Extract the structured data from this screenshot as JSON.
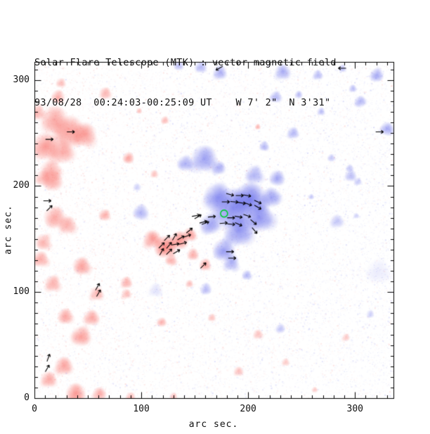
{
  "figure_name": "solar-magnetogram-plot",
  "chart_data": {
    "type": "heatmap",
    "title": "Solar Flare Telescope (MTK) : vector magnetic field",
    "subtitle": "93/08/28  00:24:03-00:25:09 UT    W 7' 2\"  N 3'31\"",
    "xlabel": "arc sec.",
    "ylabel": "arc sec.",
    "xlim": [
      0,
      336
    ],
    "ylim": [
      0,
      317
    ],
    "x_ticks": [
      0,
      100,
      200,
      300
    ],
    "y_ticks": [
      0,
      100,
      200,
      300
    ],
    "minor_tick_step": 10,
    "grid": false,
    "legend": "none",
    "colors": {
      "positive_polarity": "#f86a60",
      "negative_polarity": "#5f64eb",
      "flare_marker": "#00cc33",
      "vector_arrows": "#000000",
      "axis": "#000000",
      "background": "#ffffff"
    },
    "units": "arc seconds; blobs = [x, y, radius, amplitude]; arrows = [x, y, direction_deg_ccw_from_east]",
    "red_blobs": [
      [
        18,
        262,
        14,
        0.5
      ],
      [
        32,
        252,
        16,
        0.55
      ],
      [
        45,
        247,
        12,
        0.55
      ],
      [
        10,
        238,
        14,
        0.55
      ],
      [
        25,
        232,
        12,
        0.5
      ],
      [
        15,
        215,
        11,
        0.45
      ],
      [
        17,
        205,
        10,
        0.45
      ],
      [
        8,
        208,
        8,
        0.4
      ],
      [
        20,
        170,
        11,
        0.5
      ],
      [
        31,
        163,
        9,
        0.45
      ],
      [
        9,
        147,
        8,
        0.45
      ],
      [
        25,
        297,
        5,
        0.35
      ],
      [
        67,
        287,
        6,
        0.45
      ],
      [
        98,
        271,
        3,
        0.35
      ],
      [
        122,
        262,
        4,
        0.4
      ],
      [
        88,
        226,
        6,
        0.45
      ],
      [
        112,
        211,
        4,
        0.35
      ],
      [
        66,
        173,
        6,
        0.45
      ],
      [
        110,
        149,
        9,
        0.6
      ],
      [
        122,
        142,
        11,
        0.7
      ],
      [
        134,
        149,
        9,
        0.65
      ],
      [
        145,
        154,
        7,
        0.55
      ],
      [
        128,
        131,
        6,
        0.45
      ],
      [
        160,
        126,
        6,
        0.5
      ],
      [
        148,
        136,
        6,
        0.45
      ],
      [
        6,
        131,
        8,
        0.5
      ],
      [
        45,
        125,
        9,
        0.55
      ],
      [
        17,
        108,
        8,
        0.5
      ],
      [
        29,
        77,
        8,
        0.5
      ],
      [
        53,
        76,
        8,
        0.5
      ],
      [
        58,
        98,
        7,
        0.45
      ],
      [
        86,
        109,
        6,
        0.45
      ],
      [
        86,
        98,
        5,
        0.4
      ],
      [
        43,
        59,
        10,
        0.55
      ],
      [
        27,
        30,
        9,
        0.55
      ],
      [
        13,
        17,
        8,
        0.5
      ],
      [
        37,
        5,
        10,
        0.6
      ],
      [
        60,
        4,
        7,
        0.45
      ],
      [
        119,
        72,
        5,
        0.4
      ],
      [
        145,
        108,
        4,
        0.35
      ],
      [
        166,
        76,
        4,
        0.35
      ],
      [
        209,
        60,
        5,
        0.35
      ],
      [
        235,
        34,
        4,
        0.3
      ],
      [
        191,
        25,
        5,
        0.35
      ],
      [
        291,
        57,
        4,
        0.3
      ],
      [
        209,
        256,
        3,
        0.4
      ],
      [
        22,
        284,
        7,
        0.45
      ],
      [
        3,
        270,
        8,
        0.45
      ],
      [
        90,
        1,
        5,
        0.4
      ],
      [
        130,
        2,
        4,
        0.35
      ],
      [
        262,
        8,
        3,
        0.3
      ]
    ],
    "blue_blobs": [
      [
        184,
        177,
        20,
        0.7
      ],
      [
        171,
        190,
        14,
        0.6
      ],
      [
        200,
        188,
        17,
        0.75
      ],
      [
        211,
        170,
        14,
        0.65
      ],
      [
        191,
        157,
        15,
        0.6
      ],
      [
        177,
        140,
        11,
        0.55
      ],
      [
        184,
        127,
        8,
        0.5
      ],
      [
        164,
        164,
        10,
        0.5
      ],
      [
        221,
        190,
        10,
        0.5
      ],
      [
        227,
        207,
        8,
        0.45
      ],
      [
        206,
        211,
        9,
        0.45
      ],
      [
        158,
        225,
        13,
        0.55
      ],
      [
        141,
        222,
        8,
        0.45
      ],
      [
        172,
        217,
        7,
        0.45
      ],
      [
        135,
        314,
        5,
        0.35
      ],
      [
        155,
        312,
        6,
        0.4
      ],
      [
        173,
        307,
        7,
        0.45
      ],
      [
        232,
        307,
        8,
        0.45
      ],
      [
        265,
        305,
        5,
        0.4
      ],
      [
        288,
        311,
        4,
        0.35
      ],
      [
        320,
        305,
        7,
        0.45
      ],
      [
        298,
        292,
        4,
        0.35
      ],
      [
        305,
        280,
        6,
        0.4
      ],
      [
        226,
        284,
        6,
        0.4
      ],
      [
        247,
        286,
        4,
        0.35
      ],
      [
        268,
        270,
        4,
        0.35
      ],
      [
        242,
        250,
        6,
        0.4
      ],
      [
        330,
        254,
        7,
        0.45
      ],
      [
        215,
        238,
        5,
        0.4
      ],
      [
        278,
        227,
        4,
        0.3
      ],
      [
        295,
        217,
        4,
        0.3
      ],
      [
        296,
        210,
        6,
        0.35
      ],
      [
        303,
        204,
        4,
        0.3
      ],
      [
        259,
        190,
        3,
        0.3
      ],
      [
        283,
        167,
        7,
        0.3
      ],
      [
        301,
        172,
        3,
        0.25
      ],
      [
        199,
        116,
        5,
        0.4
      ],
      [
        160,
        103,
        6,
        0.35
      ],
      [
        230,
        66,
        5,
        0.3
      ],
      [
        314,
        79,
        4,
        0.25
      ],
      [
        99,
        176,
        8,
        0.4
      ],
      [
        96,
        199,
        4,
        0.25
      ],
      [
        113,
        102,
        7,
        0.15
      ],
      [
        323,
        120,
        12,
        0.1
      ]
    ],
    "arrows": [
      [
        183,
        192,
        -15
      ],
      [
        192,
        191,
        0
      ],
      [
        199,
        191,
        -10
      ],
      [
        179,
        185,
        0
      ],
      [
        187,
        185,
        -5
      ],
      [
        194,
        184,
        -10
      ],
      [
        200,
        183,
        -20
      ],
      [
        209,
        185,
        -25
      ],
      [
        209,
        180,
        -30
      ],
      [
        151,
        172,
        10
      ],
      [
        166,
        171,
        5
      ],
      [
        184,
        170,
        0
      ],
      [
        191,
        171,
        -10
      ],
      [
        199,
        172,
        -20
      ],
      [
        158,
        166,
        15
      ],
      [
        177,
        165,
        5
      ],
      [
        184,
        164,
        -5
      ],
      [
        191,
        164,
        -25
      ],
      [
        205,
        166,
        -40
      ],
      [
        206,
        158,
        -50
      ],
      [
        183,
        138,
        0
      ],
      [
        185,
        132,
        0
      ],
      [
        158,
        125,
        45
      ],
      [
        124,
        151,
        45
      ],
      [
        131,
        152,
        60
      ],
      [
        137,
        151,
        30
      ],
      [
        143,
        153,
        20
      ],
      [
        119,
        144,
        45
      ],
      [
        126,
        144,
        50
      ],
      [
        132,
        145,
        10
      ],
      [
        139,
        146,
        15
      ],
      [
        119,
        138,
        60
      ],
      [
        126,
        138,
        45
      ],
      [
        133,
        138,
        30
      ],
      [
        145,
        158,
        40
      ],
      [
        153,
        171,
        30
      ],
      [
        160,
        165,
        20
      ],
      [
        34,
        251,
        0
      ],
      [
        14,
        244,
        0
      ],
      [
        12,
        186,
        0
      ],
      [
        14,
        179,
        45
      ],
      [
        59,
        105,
        60
      ],
      [
        60,
        99,
        60
      ],
      [
        13,
        38,
        70
      ],
      [
        12,
        28,
        60
      ],
      [
        173,
        311,
        210
      ],
      [
        288,
        311,
        180
      ],
      [
        323,
        251,
        0
      ]
    ],
    "flare_site_marker": {
      "x": 177.5,
      "y": 174,
      "radius_px": 5
    }
  }
}
